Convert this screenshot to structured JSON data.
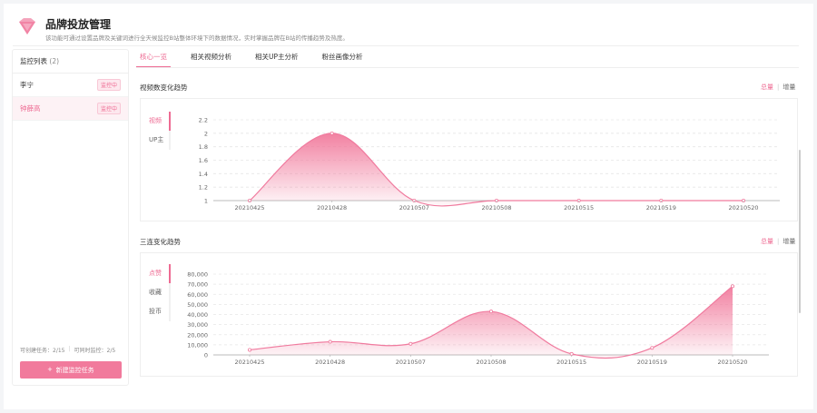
{
  "header": {
    "title": "品牌投放管理",
    "description": "该功能可通过设置品牌及关键词进行全天候监控B站整体环境下的数据情况，实时掌握品牌在B站的传播趋势及热度。"
  },
  "sidebar": {
    "heading": "监控列表",
    "count": "(2)",
    "items": [
      {
        "name": "李宁",
        "status": "监控中"
      },
      {
        "name": "钟薛高",
        "status": "监控中"
      }
    ],
    "stat_created": "可创建任务：2/15",
    "stat_concurrent": "可同时监控：2/5",
    "new_button": "新建监控任务"
  },
  "tabs": [
    "核心一览",
    "相关视频分析",
    "相关UP主分析",
    "粉丝画像分析"
  ],
  "sections": [
    {
      "title": "视频数变化趋势",
      "toggle_on": "总量",
      "toggle_off": "增量",
      "metrics": [
        "视频",
        "UP主"
      ]
    },
    {
      "title": "三连变化趋势",
      "toggle_on": "总量",
      "toggle_off": "增量",
      "metrics": [
        "点赞",
        "收藏",
        "投币"
      ]
    }
  ],
  "colors": {
    "accent": "#ee6b93",
    "line": "#f07a9e"
  },
  "chart_data": [
    {
      "type": "area",
      "categories": [
        "20210425",
        "20210428",
        "20210507",
        "20210508",
        "20210515",
        "20210519",
        "20210520"
      ],
      "values": [
        1,
        2,
        1,
        1,
        1,
        1,
        1
      ],
      "ylim": [
        1,
        2.2
      ],
      "yticks": [
        "1",
        "1.2",
        "1.4",
        "1.6",
        "1.8",
        "2",
        "2.2"
      ],
      "grid": true
    },
    {
      "type": "area",
      "categories": [
        "20210425",
        "20210428",
        "20210507",
        "20210508",
        "20210515",
        "20210519",
        "20210520"
      ],
      "values": [
        5000,
        13000,
        11000,
        43000,
        1000,
        7000,
        68000
      ],
      "ylim": [
        0,
        80000
      ],
      "yticks": [
        "0",
        "10,000",
        "20,000",
        "30,000",
        "40,000",
        "50,000",
        "60,000",
        "70,000",
        "80,000"
      ],
      "grid": true
    }
  ]
}
